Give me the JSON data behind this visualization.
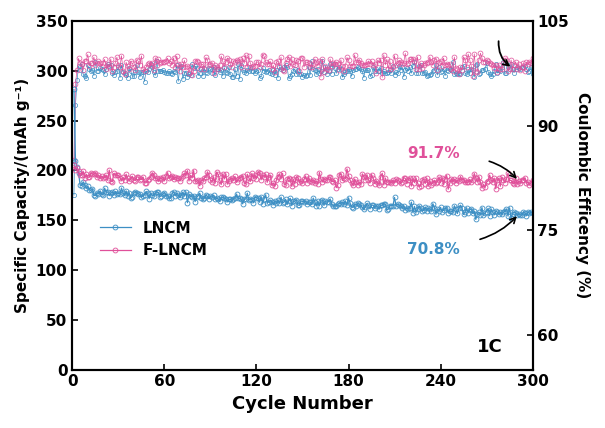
{
  "title": "",
  "xlabel": "Cycle Number",
  "ylabel_left": "Specific Capacity/(mAh g⁻¹)",
  "ylabel_right": "Coulombic Efficency (%)",
  "xlim": [
    0,
    300
  ],
  "ylim_left": [
    0,
    350
  ],
  "ylim_right": [
    55,
    105
  ],
  "xticks": [
    0,
    60,
    120,
    180,
    240,
    300
  ],
  "yticks_left": [
    0,
    50,
    100,
    150,
    200,
    250,
    300,
    350
  ],
  "yticks_right": [
    60,
    75,
    90,
    105
  ],
  "lncm_color": "#3d8fc4",
  "flncm_color": "#e0509a",
  "annotation_lncm": "70.8%",
  "annotation_flncm": "91.7%",
  "label_lncm": "LNCM",
  "label_flncm": "F-LNCM",
  "rate_label": "1C",
  "figsize": [
    6.05,
    4.28
  ],
  "dpi": 100
}
